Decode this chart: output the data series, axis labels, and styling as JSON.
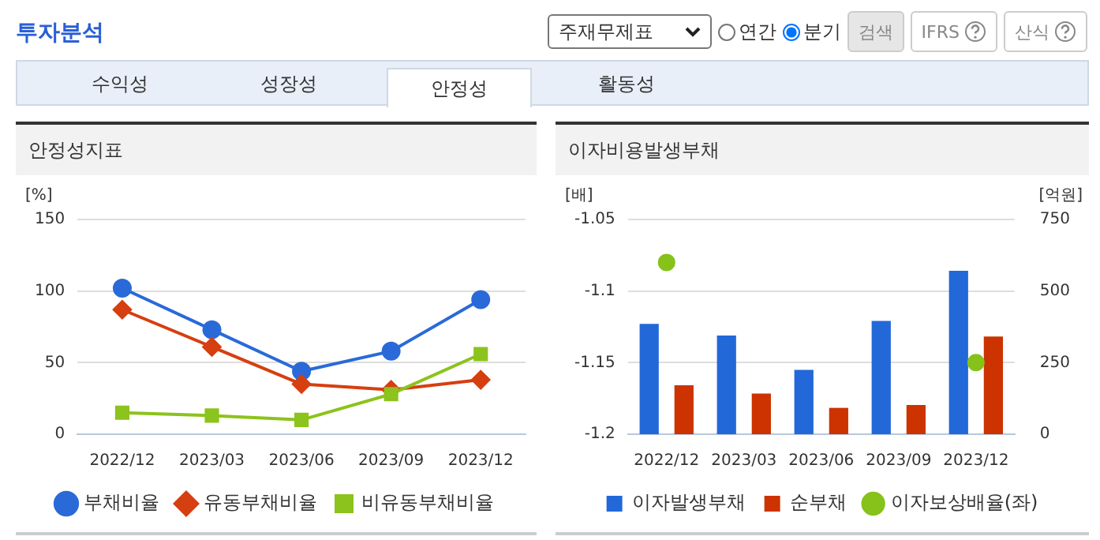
{
  "chart_data": [
    {
      "type": "other",
      "title": "투자분석",
      "annotations": [
        "주재무제표",
        "연간",
        "분기",
        "검색",
        "IFRS",
        "산식",
        "수익성",
        "성장성",
        "안정성",
        "활동성"
      ]
    },
    {
      "type": "line",
      "title": "안정성지표",
      "ylabel": "[%]",
      "categories": [
        "2022/12",
        "2023/03",
        "2023/06",
        "2023/09",
        "2023/12"
      ],
      "ylim": [
        0,
        150
      ],
      "yticks": [
        0,
        50,
        100,
        150
      ],
      "grid": "y",
      "legend": "bottom",
      "series": [
        {
          "name": "부채비율",
          "color": "#2a6ad8",
          "marker": "circle",
          "values": [
            102,
            73,
            44,
            58,
            94
          ]
        },
        {
          "name": "유동부채비율",
          "color": "#d63f10",
          "marker": "diamond",
          "values": [
            87,
            61,
            35,
            31,
            38
          ]
        },
        {
          "name": "비유동부채비율",
          "color": "#8cc31c",
          "marker": "square",
          "values": [
            15,
            13,
            10,
            28,
            56
          ]
        }
      ]
    },
    {
      "type": "bar",
      "title": "이자비용발생부채",
      "ylabel": "[배]",
      "y2label": "[억원]",
      "categories": [
        "2022/12",
        "2023/03",
        "2023/06",
        "2023/09",
        "2023/12"
      ],
      "ylim": [
        -1.2,
        -1.05
      ],
      "yticks": [
        -1.2,
        -1.15,
        -1.1,
        -1.05
      ],
      "y2lim": [
        0,
        750
      ],
      "y2ticks": [
        0,
        250,
        500,
        750
      ],
      "grid": "y",
      "legend": "bottom",
      "series": [
        {
          "name": "이자발생부채",
          "color": "#2268d8",
          "axis": "y2",
          "values": [
            385,
            345,
            225,
            396,
            571
          ]
        },
        {
          "name": "순부채",
          "color": "#cc3300",
          "axis": "y2",
          "values": [
            171,
            142,
            92,
            102,
            341
          ]
        },
        {
          "name": "이자보상배율(좌)",
          "type": "scatter",
          "color": "#86c21a",
          "marker": "circle",
          "values": [
            -1.08,
            null,
            null,
            null,
            -1.15
          ]
        }
      ]
    }
  ]
}
